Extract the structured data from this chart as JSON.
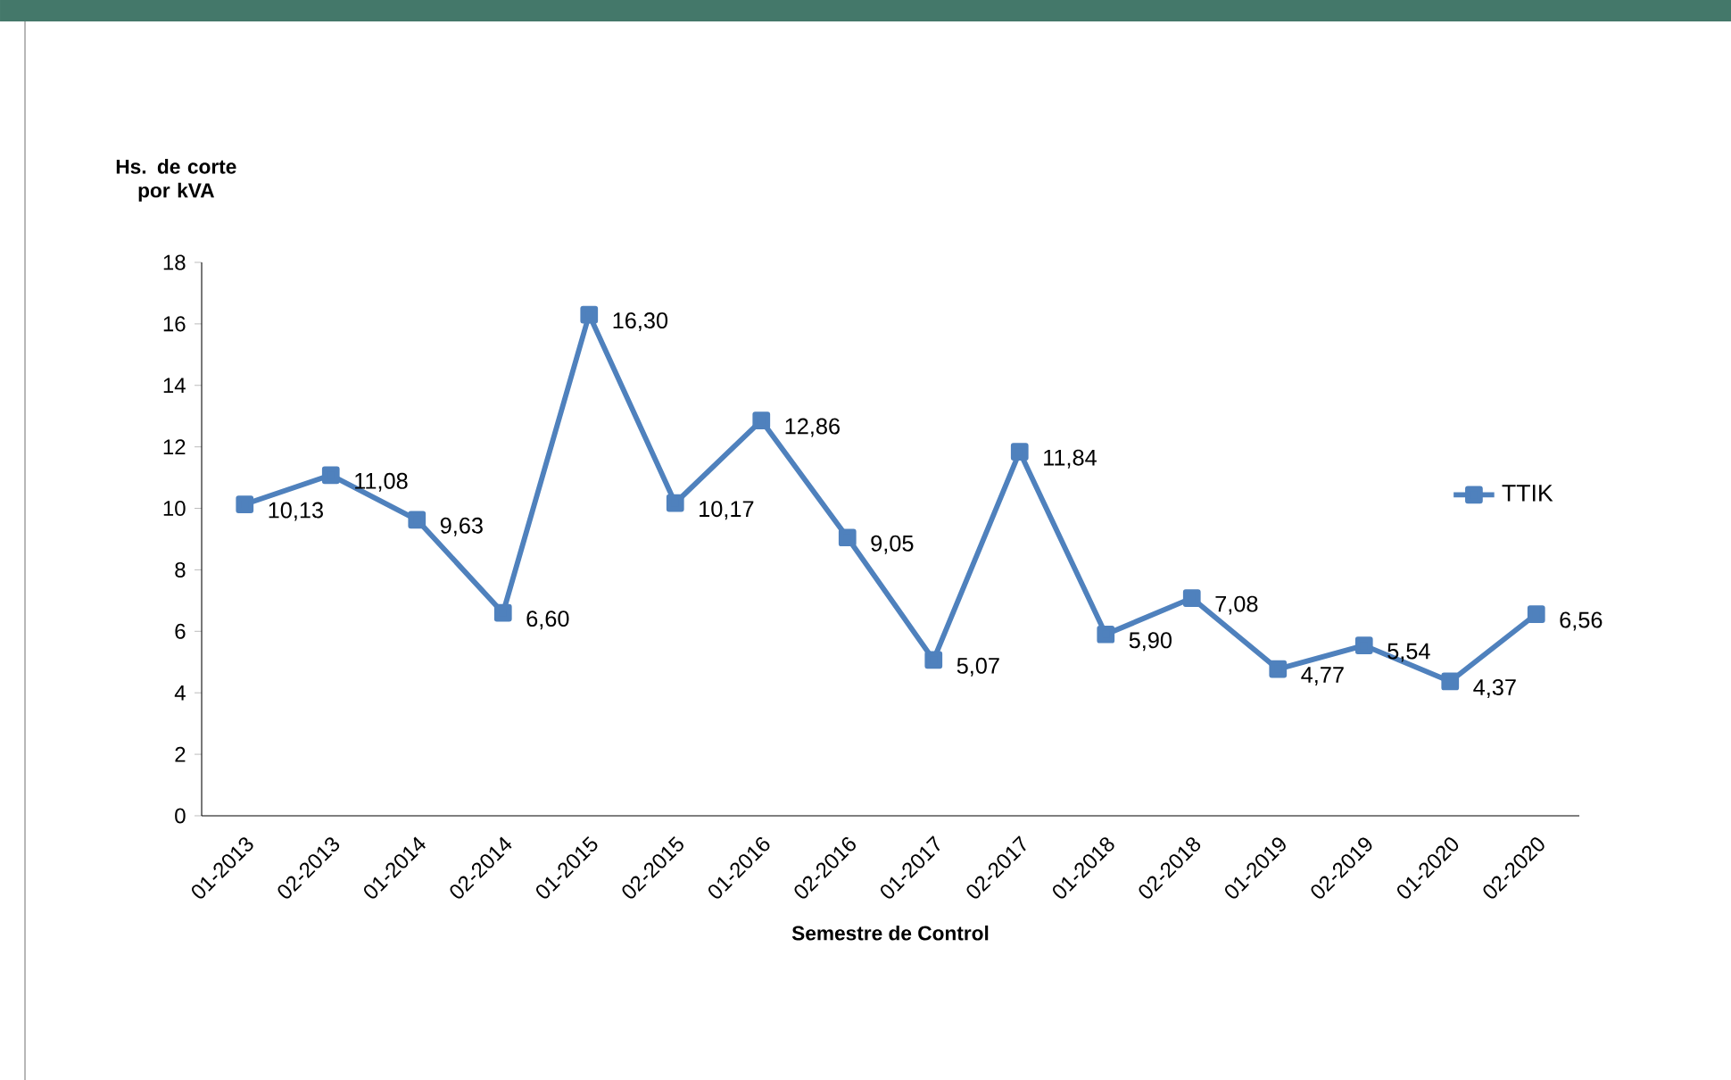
{
  "chart_data": {
    "type": "line",
    "ylabel": "Hs. de corte por kVA",
    "xlabel": "Semestre de Control",
    "categories": [
      "01-2013",
      "02-2013",
      "01-2014",
      "02-2014",
      "01-2015",
      "02-2015",
      "01-2016",
      "02-2016",
      "01-2017",
      "02-2017",
      "01-2018",
      "02-2018",
      "01-2019",
      "02-2019",
      "01-2020",
      "02-2020"
    ],
    "series": [
      {
        "name": "TTIK",
        "color": "#4f81bd",
        "values": [
          10.13,
          11.08,
          9.63,
          6.6,
          16.3,
          10.17,
          12.86,
          9.05,
          5.07,
          11.84,
          5.9,
          7.08,
          4.77,
          5.54,
          4.37,
          6.56
        ],
        "value_labels": [
          "10,13",
          "11,08",
          "9,63",
          "6,60",
          "16,30",
          "10,17",
          "12,86",
          "9,05",
          "5,07",
          "11,84",
          "5,90",
          "7,08",
          "4,77",
          "5,54",
          "4,37",
          "6,56"
        ]
      }
    ],
    "ylim": [
      0,
      18
    ],
    "yticks": [
      0,
      2,
      4,
      6,
      8,
      10,
      12,
      14,
      16,
      18
    ],
    "marker": "square",
    "line_style": "solid",
    "legend": "right",
    "grid": false
  }
}
